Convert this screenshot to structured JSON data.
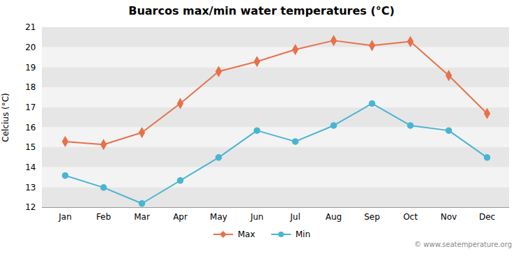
{
  "chart_data": {
    "type": "line",
    "title": "Buarcos max/min water temperatures (°C)",
    "ylabel": "Celcius (°C)",
    "categories": [
      "Jan",
      "Feb",
      "Mar",
      "Apr",
      "May",
      "Jun",
      "Jul",
      "Aug",
      "Sep",
      "Oct",
      "Nov",
      "Dec"
    ],
    "series": [
      {
        "name": "Max",
        "color": "#e8714a",
        "marker": "diamond",
        "values": [
          15.3,
          15.15,
          15.75,
          17.2,
          18.8,
          19.3,
          19.9,
          20.35,
          20.1,
          20.3,
          18.6,
          16.7
        ]
      },
      {
        "name": "Min",
        "color": "#4ab4d4",
        "marker": "circle",
        "values": [
          13.6,
          13.0,
          12.2,
          13.35,
          14.5,
          15.85,
          15.3,
          16.1,
          17.2,
          16.1,
          15.85,
          14.5
        ]
      }
    ],
    "ylim": [
      12,
      21
    ],
    "yticks": [
      12,
      13,
      14,
      15,
      16,
      17,
      18,
      19,
      20,
      21
    ],
    "grid": true,
    "legend": "bottom",
    "annotations": [
      "© www.seatemperature.org"
    ]
  }
}
